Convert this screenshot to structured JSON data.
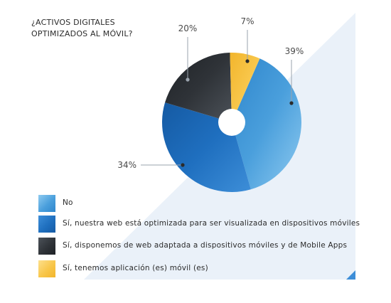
{
  "title_lines": [
    "¿ACTIVOS DIGITALES",
    "OPTIMIZADOS AL MÓVIL?"
  ],
  "chart_data": {
    "type": "pie",
    "donut": true,
    "title": "¿ACTIVOS DIGITALES OPTIMIZADOS AL MÓVIL?",
    "legend_position": "bottom-left",
    "slices": [
      {
        "label": "No",
        "value": 39,
        "display": "39%",
        "color": "#4a9fdc",
        "light": "#8ecaf0",
        "dark": "#2f86cc"
      },
      {
        "label": "Sí, nuestra web está optimizada para ser visualizada en dispositivos móviles",
        "value": 34,
        "display": "34%",
        "color": "#1f6fbf",
        "light": "#3d8ed8",
        "dark": "#155aa3"
      },
      {
        "label": "Sí, disponemos de web adaptada a dispositivos móviles y de Mobile Apps",
        "value": 20,
        "display": "20%",
        "color": "#2f3338",
        "light": "#4c5259",
        "dark": "#1e2226"
      },
      {
        "label": "Sí, tenemos aplicación (es) móvil (es)",
        "value": 7,
        "display": "7%",
        "color": "#f8c64a",
        "light": "#fde08c",
        "dark": "#f2b52c"
      }
    ]
  }
}
